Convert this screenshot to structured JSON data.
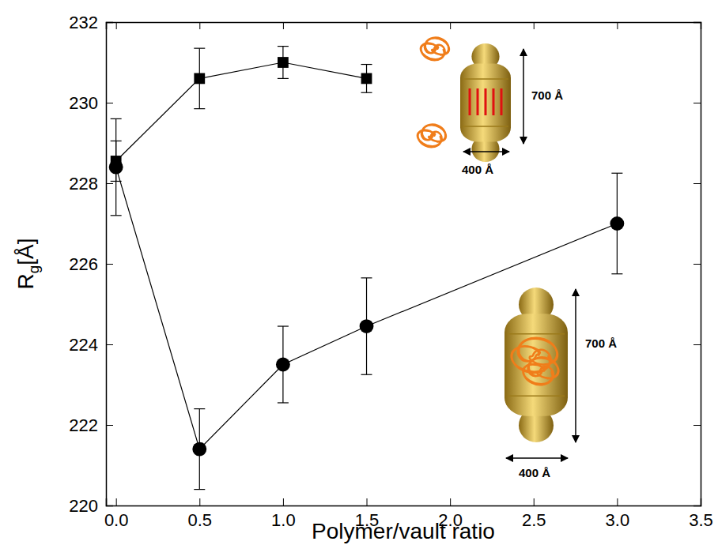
{
  "chart_data": {
    "type": "line",
    "x_label": "Polymer/vault ratio",
    "y_label": "Rg[Å]",
    "xlim": [
      -0.06,
      3.5
    ],
    "ylim": [
      220,
      232
    ],
    "xticks": [
      {
        "value": 0,
        "label": "0.0"
      },
      {
        "value": 0.5,
        "label": "0.5"
      },
      {
        "value": 1,
        "label": "1.0"
      },
      {
        "value": 1.5,
        "label": "1.5"
      },
      {
        "value": 2,
        "label": "2.0"
      },
      {
        "value": 2.5,
        "label": "2.5"
      },
      {
        "value": 3,
        "label": "3.0"
      },
      {
        "value": 3.5,
        "label": "3.5"
      }
    ],
    "yticks": [
      220,
      222,
      224,
      226,
      228,
      230,
      232
    ],
    "grid": false,
    "series": [
      {
        "marker": "square",
        "color": "#000000",
        "x": [
          0,
          0.5,
          1,
          1.5
        ],
        "values": [
          228.55,
          230.6,
          231.0,
          230.6
        ],
        "errors": [
          0.5,
          0.75,
          0.4,
          0.35
        ]
      },
      {
        "marker": "circle",
        "color": "#000000",
        "x": [
          0,
          0.5,
          1,
          1.5,
          3
        ],
        "values": [
          228.4,
          221.4,
          223.5,
          224.45,
          227.0
        ],
        "errors": [
          1.2,
          1.0,
          0.95,
          1.2,
          1.25
        ]
      }
    ],
    "annotations": [
      "700 Å",
      "400 Å",
      "700 Å",
      "400 Å"
    ]
  }
}
